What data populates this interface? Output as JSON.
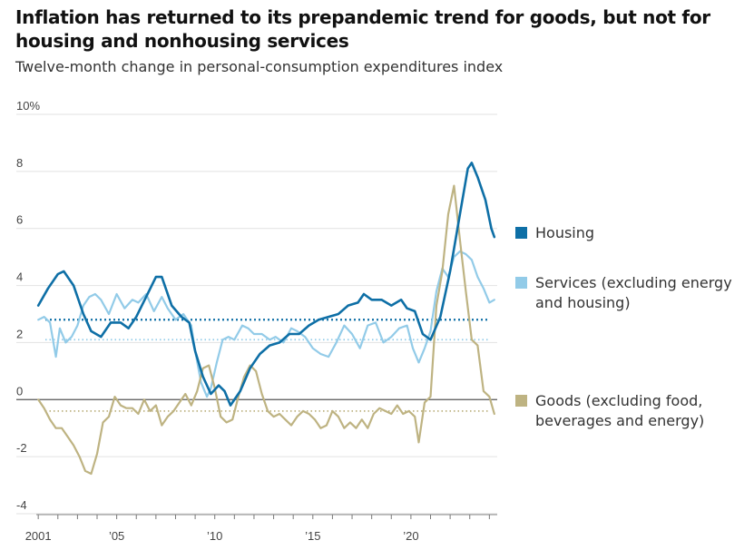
{
  "header": {
    "title": "Inflation has returned to its prepandemic trend for goods, but not for housing and nonhousing services",
    "subtitle": "Twelve-month change in personal-consumption expenditures index"
  },
  "chart_data": {
    "type": "line",
    "title": "Inflation has returned to its prepandemic trend for goods, but not for housing and nonhousing services",
    "subtitle": "Twelve-month change in personal-consumption expenditures index",
    "ylabel": "",
    "xlabel": "",
    "ylim": [
      -4,
      10
    ],
    "xlim": [
      2000.9,
      2024.4
    ],
    "grid": true,
    "y_ticks": [
      {
        "value": 10,
        "label": "10%"
      },
      {
        "value": 8,
        "label": "8"
      },
      {
        "value": 6,
        "label": "6"
      },
      {
        "value": 4,
        "label": "4"
      },
      {
        "value": 2,
        "label": "2"
      },
      {
        "value": 0,
        "label": "0"
      },
      {
        "value": -2,
        "label": "-2"
      },
      {
        "value": -4,
        "label": "-4"
      }
    ],
    "x_ticks": [
      {
        "value": 2001,
        "label": "2001"
      },
      {
        "value": 2005,
        "label": "’05"
      },
      {
        "value": 2010,
        "label": "’10"
      },
      {
        "value": 2015,
        "label": "’15"
      },
      {
        "value": 2020,
        "label": "’20"
      }
    ],
    "series": [
      {
        "name": "Housing",
        "legend_label": "Housing",
        "color": "#0e6fa6",
        "trend": 2.8,
        "x": [
          2001.0,
          2001.5,
          2002.0,
          2002.3,
          2002.8,
          2003.3,
          2003.7,
          2004.2,
          2004.7,
          2005.2,
          2005.6,
          2006.0,
          2006.5,
          2007.0,
          2007.3,
          2007.8,
          2008.3,
          2008.7,
          2009.0,
          2009.4,
          2009.8,
          2010.2,
          2010.5,
          2010.8,
          2011.3,
          2011.8,
          2012.3,
          2012.8,
          2013.3,
          2013.8,
          2014.3,
          2014.8,
          2015.3,
          2015.8,
          2016.3,
          2016.8,
          2017.3,
          2017.6,
          2018.0,
          2018.5,
          2019.0,
          2019.5,
          2019.8,
          2020.2,
          2020.6,
          2021.0,
          2021.5,
          2022.0,
          2022.5,
          2022.9,
          2023.1,
          2023.4,
          2023.8,
          2024.1,
          2024.25
        ],
        "values": [
          3.3,
          3.9,
          4.4,
          4.5,
          4.0,
          3.0,
          2.4,
          2.2,
          2.7,
          2.7,
          2.5,
          2.9,
          3.6,
          4.3,
          4.3,
          3.3,
          2.9,
          2.7,
          1.7,
          0.8,
          0.2,
          0.5,
          0.3,
          -0.2,
          0.3,
          1.1,
          1.6,
          1.9,
          2.0,
          2.3,
          2.3,
          2.6,
          2.8,
          2.9,
          3.0,
          3.3,
          3.4,
          3.7,
          3.5,
          3.5,
          3.3,
          3.5,
          3.2,
          3.1,
          2.3,
          2.1,
          2.9,
          4.5,
          6.5,
          8.1,
          8.3,
          7.8,
          7.0,
          6.0,
          5.7
        ]
      },
      {
        "name": "Services (excluding energy and housing)",
        "legend_label": "Services (excluding energy and housing)",
        "color": "#92cbe8",
        "trend": 2.1,
        "x": [
          2001.0,
          2001.3,
          2001.6,
          2001.9,
          2002.1,
          2002.4,
          2002.7,
          2003.0,
          2003.3,
          2003.6,
          2003.9,
          2004.2,
          2004.6,
          2005.0,
          2005.4,
          2005.8,
          2006.1,
          2006.5,
          2006.9,
          2007.3,
          2007.6,
          2008.0,
          2008.4,
          2008.8,
          2009.0,
          2009.3,
          2009.6,
          2009.8,
          2010.1,
          2010.4,
          2010.7,
          2011.0,
          2011.4,
          2011.7,
          2012.0,
          2012.4,
          2012.8,
          2013.1,
          2013.5,
          2013.9,
          2014.2,
          2014.6,
          2015.0,
          2015.4,
          2015.8,
          2016.2,
          2016.6,
          2017.0,
          2017.4,
          2017.8,
          2018.2,
          2018.6,
          2019.0,
          2019.4,
          2019.8,
          2020.1,
          2020.4,
          2020.7,
          2021.0,
          2021.3,
          2021.6,
          2021.9,
          2022.2,
          2022.5,
          2022.8,
          2023.1,
          2023.4,
          2023.7,
          2024.0,
          2024.25
        ],
        "values": [
          2.8,
          2.9,
          2.7,
          1.5,
          2.5,
          2.0,
          2.2,
          2.6,
          3.3,
          3.6,
          3.7,
          3.5,
          3.0,
          3.7,
          3.2,
          3.5,
          3.4,
          3.7,
          3.1,
          3.6,
          3.2,
          2.8,
          3.0,
          2.6,
          1.7,
          0.6,
          0.1,
          0.4,
          1.3,
          2.1,
          2.2,
          2.1,
          2.6,
          2.5,
          2.3,
          2.3,
          2.1,
          2.2,
          2.0,
          2.5,
          2.4,
          2.2,
          1.8,
          1.6,
          1.5,
          2.0,
          2.6,
          2.3,
          1.8,
          2.6,
          2.7,
          2.0,
          2.2,
          2.5,
          2.6,
          1.8,
          1.3,
          1.8,
          2.4,
          3.8,
          4.6,
          4.3,
          5.0,
          5.2,
          5.1,
          4.9,
          4.3,
          3.9,
          3.4,
          3.5
        ]
      },
      {
        "name": "Goods (excluding food, beverages and energy)",
        "legend_label": "Goods (excluding food, beverages and energy)",
        "color": "#beb382",
        "trend": -0.4,
        "x": [
          2001.0,
          2001.3,
          2001.6,
          2001.9,
          2002.2,
          2002.5,
          2002.8,
          2003.1,
          2003.4,
          2003.7,
          2004.0,
          2004.3,
          2004.6,
          2004.9,
          2005.2,
          2005.5,
          2005.8,
          2006.1,
          2006.4,
          2006.7,
          2007.0,
          2007.3,
          2007.6,
          2007.9,
          2008.2,
          2008.5,
          2008.8,
          2009.1,
          2009.4,
          2009.7,
          2010.0,
          2010.3,
          2010.6,
          2010.9,
          2011.2,
          2011.5,
          2011.8,
          2012.1,
          2012.4,
          2012.7,
          2013.0,
          2013.3,
          2013.6,
          2013.9,
          2014.2,
          2014.5,
          2014.8,
          2015.1,
          2015.4,
          2015.7,
          2016.0,
          2016.3,
          2016.6,
          2016.9,
          2017.2,
          2017.5,
          2017.8,
          2018.1,
          2018.4,
          2018.7,
          2019.0,
          2019.3,
          2019.6,
          2019.9,
          2020.2,
          2020.4,
          2020.7,
          2021.0,
          2021.3,
          2021.6,
          2021.9,
          2022.2,
          2022.5,
          2022.8,
          2023.1,
          2023.4,
          2023.7,
          2024.0,
          2024.25
        ],
        "values": [
          0.0,
          -0.3,
          -0.7,
          -1.0,
          -1.0,
          -1.3,
          -1.6,
          -2.0,
          -2.5,
          -2.6,
          -1.9,
          -0.8,
          -0.6,
          0.1,
          -0.2,
          -0.3,
          -0.3,
          -0.5,
          0.0,
          -0.4,
          -0.2,
          -0.9,
          -0.6,
          -0.4,
          -0.1,
          0.2,
          -0.2,
          0.3,
          1.1,
          1.2,
          0.4,
          -0.6,
          -0.8,
          -0.7,
          0.1,
          0.8,
          1.2,
          1.0,
          0.2,
          -0.4,
          -0.6,
          -0.5,
          -0.7,
          -0.9,
          -0.6,
          -0.4,
          -0.5,
          -0.7,
          -1.0,
          -0.9,
          -0.4,
          -0.6,
          -1.0,
          -0.8,
          -1.0,
          -0.7,
          -1.0,
          -0.5,
          -0.3,
          -0.4,
          -0.5,
          -0.2,
          -0.5,
          -0.4,
          -0.6,
          -1.5,
          -0.1,
          0.1,
          3.3,
          4.5,
          6.5,
          7.5,
          5.6,
          3.8,
          2.1,
          1.9,
          0.3,
          0.1,
          -0.5
        ]
      }
    ]
  },
  "legend": [
    {
      "label": "Housing",
      "color": "#0e6fa6"
    },
    {
      "label": "Services (excluding energy and housing)",
      "color": "#92cbe8"
    },
    {
      "label": "Goods (excluding food, beverages and energy)",
      "color": "#beb382"
    }
  ]
}
